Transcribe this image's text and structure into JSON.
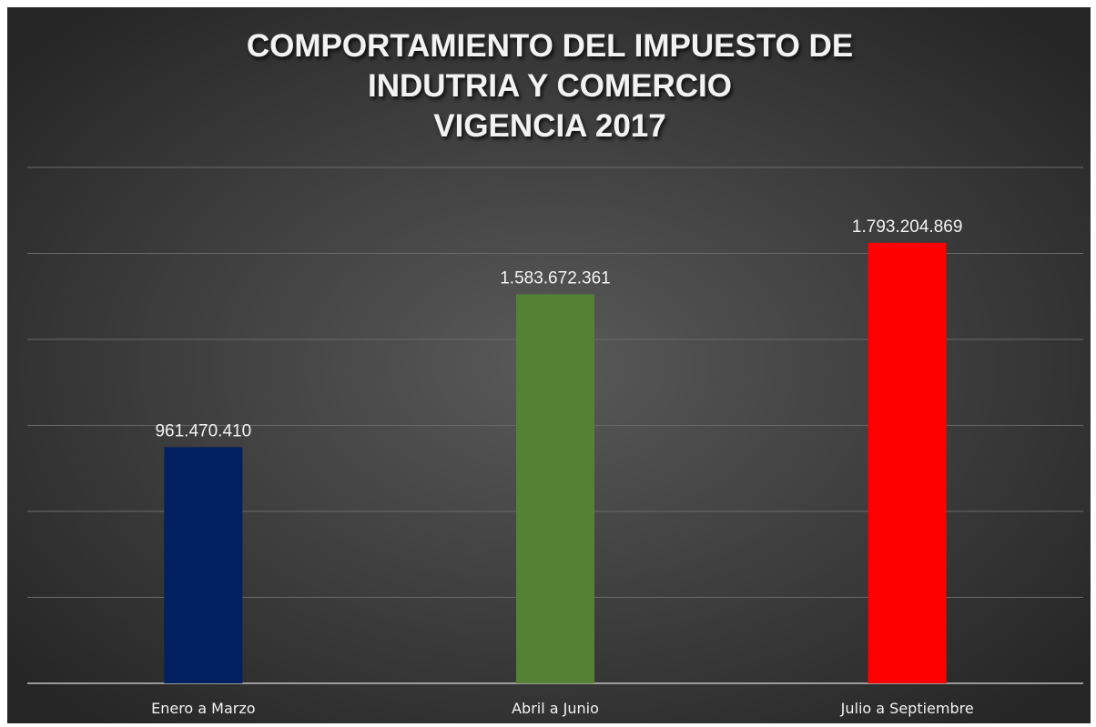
{
  "chart_data": {
    "type": "bar",
    "title": [
      "COMPORTAMIENTO DEL IMPUESTO DE",
      "INDUTRIA Y COMERCIO",
      "VIGENCIA 2017"
    ],
    "categories": [
      "Enero a Marzo",
      "Abril a Junio",
      "Julio a Septiembre"
    ],
    "values": [
      961470410,
      1583672361,
      1793204869
    ],
    "value_labels": [
      "961.470.410",
      "1.583.672.361",
      "1.793.204.869"
    ],
    "colors": [
      "#002060",
      "#548235",
      "#ff0000"
    ],
    "ylim": [
      0,
      2100000000
    ],
    "yticks": [
      0,
      350000000,
      700000000,
      1050000000,
      1400000000,
      1750000000,
      2100000000
    ],
    "grid": true
  }
}
